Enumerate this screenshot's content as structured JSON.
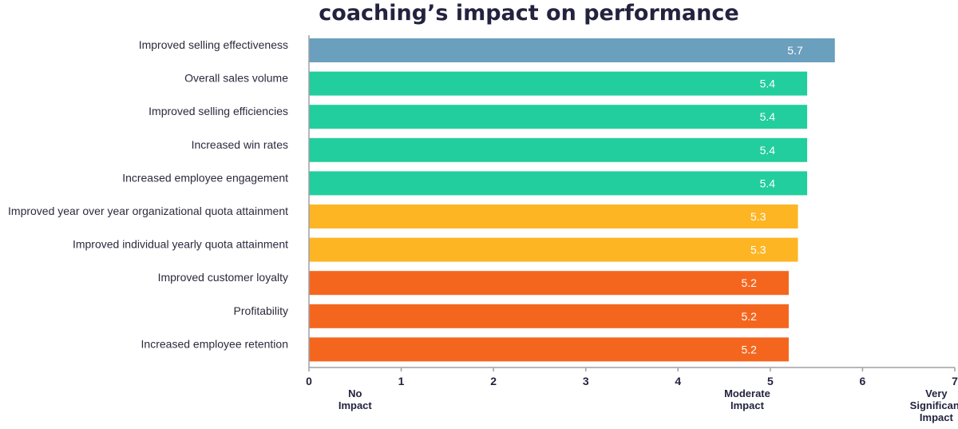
{
  "chart_data": {
    "type": "bar",
    "orientation": "horizontal",
    "title": "coaching’s impact on performance",
    "xlabel": "",
    "ylabel": "",
    "xlim": [
      0,
      7
    ],
    "xticks": [
      "0",
      "1",
      "2",
      "3",
      "4",
      "5",
      "6",
      "7"
    ],
    "grid": false,
    "legend": "none",
    "categories": [
      "Improved selling effectiveness",
      "Overall sales volume",
      "Improved selling efficiencies",
      "Increased win rates",
      "Increased employee engagement",
      "Improved year over year organizational quota attainment",
      "Improved individual yearly quota attainment",
      "Improved customer loyalty",
      "Profitability",
      "Increased employee retention"
    ],
    "values": [
      5.7,
      5.4,
      5.4,
      5.4,
      5.4,
      5.3,
      5.3,
      5.2,
      5.2,
      5.2
    ],
    "value_labels": [
      "5.7",
      "5.4",
      "5.4",
      "5.4",
      "5.4",
      "5.3",
      "5.3",
      "5.2",
      "5.2",
      "5.2"
    ],
    "bar_colors": [
      "#6a9fbd",
      "#22ce9d",
      "#22ce9d",
      "#22ce9d",
      "#22ce9d",
      "#fdb524",
      "#fdb524",
      "#f4661e",
      "#f4661e",
      "#f4661e"
    ],
    "axis_annotations": [
      {
        "value": 0.5,
        "lines": [
          "No",
          "Impact"
        ]
      },
      {
        "value": 4.75,
        "lines": [
          "Moderate",
          "Impact"
        ]
      },
      {
        "value": 6.8,
        "lines": [
          "Very",
          "Significant",
          "Impact"
        ]
      }
    ],
    "axis_color": "#a0a0a6"
  }
}
